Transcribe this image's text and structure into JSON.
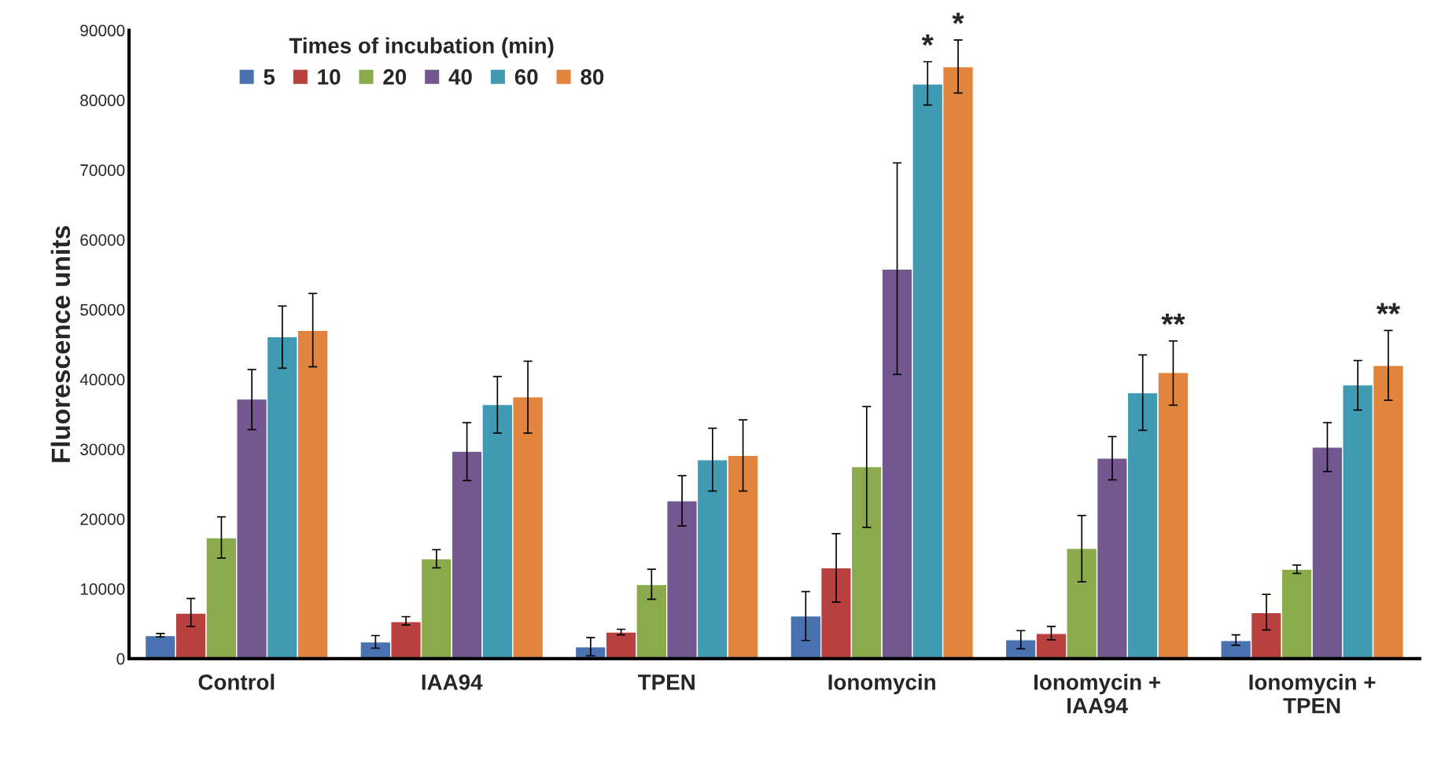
{
  "chart_data": {
    "type": "bar",
    "ylabel": "Fluorescence units",
    "legend_title": "Times of incubation (min)",
    "legend": "top left",
    "grid": false,
    "categories": [
      "Control",
      "IAA94",
      "TPEN",
      "Ionomycin",
      "Ionomycin +\nIAA94",
      "Ionomycin +\nTPEN"
    ],
    "ylim": [
      0,
      90000
    ],
    "yticks": [
      0,
      10000,
      20000,
      30000,
      40000,
      50000,
      60000,
      70000,
      80000,
      90000
    ],
    "series": [
      {
        "name": "5",
        "color": "#4a72b0",
        "values": [
          3300,
          2400,
          1700,
          6100,
          2700,
          2600
        ],
        "errors": [
          [
            3100,
            3600
          ],
          [
            1500,
            3300
          ],
          [
            400,
            3000
          ],
          [
            2600,
            9600
          ],
          [
            1400,
            4000
          ],
          [
            1900,
            3400
          ]
        ]
      },
      {
        "name": "10",
        "color": "#b8413f",
        "values": [
          6500,
          5300,
          3800,
          13000,
          3600,
          6600
        ],
        "errors": [
          [
            4600,
            8600
          ],
          [
            4800,
            6000
          ],
          [
            3400,
            4200
          ],
          [
            8100,
            17900
          ],
          [
            2700,
            4600
          ],
          [
            4100,
            9200
          ]
        ]
      },
      {
        "name": "20",
        "color": "#8aaa4b",
        "values": [
          17300,
          14300,
          10600,
          27500,
          15800,
          12800
        ],
        "errors": [
          [
            14400,
            20300
          ],
          [
            13000,
            15600
          ],
          [
            8500,
            12800
          ],
          [
            18800,
            36100
          ],
          [
            11000,
            20500
          ],
          [
            12200,
            13400
          ]
        ]
      },
      {
        "name": "40",
        "color": "#72588f",
        "values": [
          37200,
          29700,
          22600,
          55800,
          28700,
          30300
        ],
        "errors": [
          [
            32800,
            41400
          ],
          [
            25500,
            33800
          ],
          [
            19000,
            26200
          ],
          [
            40700,
            71000
          ],
          [
            25600,
            31800
          ],
          [
            26800,
            33800
          ]
        ]
      },
      {
        "name": "60",
        "color": "#3f9ab2",
        "values": [
          46100,
          36400,
          28500,
          82300,
          38100,
          39200
        ],
        "errors": [
          [
            41600,
            50500
          ],
          [
            32300,
            40400
          ],
          [
            24000,
            33000
          ],
          [
            79300,
            85500
          ],
          [
            32700,
            43500
          ],
          [
            35600,
            42700
          ]
        ]
      },
      {
        "name": "80",
        "color": "#e0843e",
        "values": [
          47000,
          37500,
          29100,
          84800,
          41000,
          42000
        ],
        "errors": [
          [
            41800,
            52300
          ],
          [
            32300,
            42600
          ],
          [
            24000,
            34200
          ],
          [
            81000,
            88600
          ],
          [
            36300,
            45500
          ],
          [
            37000,
            47000
          ]
        ]
      }
    ],
    "annotations": [
      "*",
      "*",
      "**",
      "**"
    ]
  }
}
